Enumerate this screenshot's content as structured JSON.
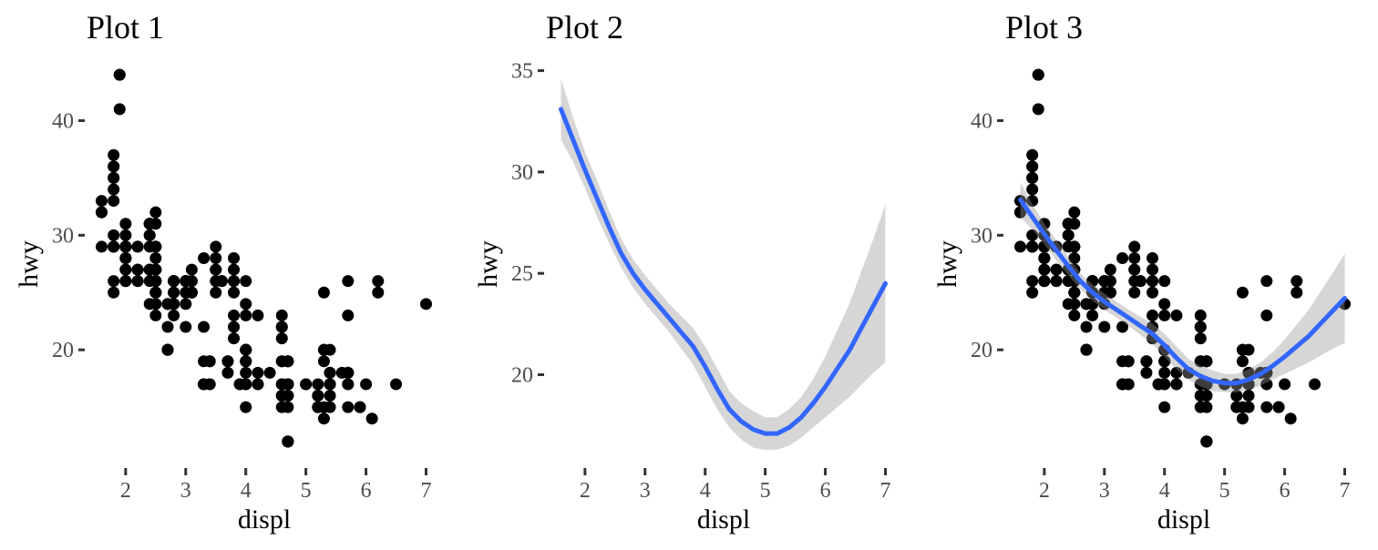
{
  "chart_data": [
    {
      "type": "scatter",
      "title": "Plot 1",
      "xlabel": "displ",
      "ylabel": "hwy",
      "xlim": [
        1.35,
        7.25
      ],
      "ylim": [
        10.4,
        45.6
      ],
      "xticks": [
        "2",
        "3",
        "4",
        "5",
        "6",
        "7"
      ],
      "yticks": [
        "20",
        "30",
        "40"
      ],
      "grid": false,
      "points": [
        [
          1.8,
          29
        ],
        [
          1.8,
          29
        ],
        [
          2.0,
          31
        ],
        [
          2.0,
          30
        ],
        [
          2.8,
          26
        ],
        [
          2.8,
          26
        ],
        [
          3.1,
          27
        ],
        [
          1.8,
          26
        ],
        [
          1.8,
          25
        ],
        [
          2.0,
          28
        ],
        [
          2.0,
          27
        ],
        [
          2.8,
          25
        ],
        [
          2.8,
          25
        ],
        [
          3.1,
          25
        ],
        [
          3.1,
          25
        ],
        [
          2.8,
          24
        ],
        [
          3.1,
          25
        ],
        [
          4.2,
          23
        ],
        [
          5.3,
          20
        ],
        [
          5.3,
          15
        ],
        [
          5.3,
          20
        ],
        [
          5.7,
          17
        ],
        [
          6.0,
          17
        ],
        [
          5.7,
          26
        ],
        [
          5.7,
          23
        ],
        [
          6.2,
          26
        ],
        [
          6.2,
          25
        ],
        [
          7.0,
          24
        ],
        [
          5.3,
          19
        ],
        [
          5.3,
          14
        ],
        [
          5.7,
          15
        ],
        [
          6.5,
          17
        ],
        [
          2.4,
          27
        ],
        [
          2.4,
          30
        ],
        [
          3.1,
          26
        ],
        [
          3.5,
          29
        ],
        [
          3.6,
          26
        ],
        [
          2.4,
          24
        ],
        [
          3.0,
          24
        ],
        [
          3.3,
          22
        ],
        [
          3.3,
          19
        ],
        [
          3.3,
          17
        ],
        [
          3.3,
          17
        ],
        [
          3.8,
          22
        ],
        [
          3.8,
          21
        ],
        [
          3.8,
          23
        ],
        [
          4.0,
          23
        ],
        [
          3.7,
          19
        ],
        [
          3.7,
          18
        ],
        [
          3.9,
          17
        ],
        [
          3.9,
          17
        ],
        [
          4.7,
          19
        ],
        [
          4.7,
          19
        ],
        [
          4.7,
          12
        ],
        [
          5.2,
          17
        ],
        [
          5.2,
          15
        ],
        [
          3.9,
          17
        ],
        [
          4.7,
          17
        ],
        [
          4.7,
          12
        ],
        [
          4.7,
          17
        ],
        [
          5.2,
          16
        ],
        [
          5.7,
          18
        ],
        [
          5.9,
          15
        ],
        [
          4.7,
          16
        ],
        [
          4.7,
          12
        ],
        [
          4.7,
          17
        ],
        [
          4.7,
          17
        ],
        [
          4.7,
          16
        ],
        [
          4.7,
          12
        ],
        [
          5.2,
          15
        ],
        [
          5.2,
          16
        ],
        [
          5.7,
          17
        ],
        [
          5.9,
          15
        ],
        [
          4.6,
          17
        ],
        [
          5.4,
          17
        ],
        [
          5.4,
          18
        ],
        [
          4.0,
          17
        ],
        [
          4.0,
          19
        ],
        [
          4.0,
          17
        ],
        [
          4.0,
          19
        ],
        [
          4.6,
          19
        ],
        [
          5.0,
          17
        ],
        [
          4.2,
          17
        ],
        [
          4.2,
          17
        ],
        [
          4.6,
          16
        ],
        [
          4.6,
          16
        ],
        [
          4.6,
          17
        ],
        [
          5.4,
          15
        ],
        [
          5.4,
          17
        ],
        [
          3.8,
          26
        ],
        [
          3.8,
          25
        ],
        [
          4.0,
          26
        ],
        [
          4.0,
          24
        ],
        [
          4.6,
          21
        ],
        [
          4.6,
          22
        ],
        [
          4.6,
          23
        ],
        [
          4.6,
          22
        ],
        [
          5.4,
          20
        ],
        [
          1.6,
          33
        ],
        [
          1.6,
          32
        ],
        [
          1.6,
          32
        ],
        [
          1.6,
          29
        ],
        [
          1.6,
          32
        ],
        [
          1.8,
          34
        ],
        [
          1.8,
          36
        ],
        [
          1.8,
          36
        ],
        [
          2.0,
          29
        ],
        [
          2.4,
          26
        ],
        [
          2.4,
          27
        ],
        [
          2.4,
          30
        ],
        [
          2.4,
          31
        ],
        [
          2.5,
          26
        ],
        [
          2.5,
          26
        ],
        [
          3.3,
          28
        ],
        [
          2.0,
          26
        ],
        [
          2.0,
          29
        ],
        [
          2.0,
          28
        ],
        [
          2.0,
          27
        ],
        [
          2.7,
          24
        ],
        [
          2.7,
          24
        ],
        [
          2.7,
          24
        ],
        [
          3.0,
          22
        ],
        [
          3.7,
          19
        ],
        [
          4.0,
          20
        ],
        [
          4.7,
          17
        ],
        [
          4.7,
          12
        ],
        [
          4.7,
          19
        ],
        [
          5.7,
          18
        ],
        [
          6.1,
          14
        ],
        [
          4.0,
          15
        ],
        [
          4.2,
          18
        ],
        [
          4.4,
          18
        ],
        [
          4.6,
          15
        ],
        [
          5.4,
          17
        ],
        [
          5.4,
          16
        ],
        [
          5.4,
          18
        ],
        [
          4.0,
          17
        ],
        [
          4.0,
          19
        ],
        [
          4.6,
          19
        ],
        [
          5.0,
          17
        ],
        [
          2.4,
          29
        ],
        [
          2.4,
          27
        ],
        [
          2.5,
          31
        ],
        [
          2.5,
          32
        ],
        [
          3.5,
          27
        ],
        [
          3.5,
          26
        ],
        [
          3.0,
          26
        ],
        [
          3.0,
          25
        ],
        [
          3.5,
          25
        ],
        [
          3.3,
          17
        ],
        [
          3.3,
          17
        ],
        [
          4.0,
          20
        ],
        [
          5.6,
          18
        ],
        [
          3.1,
          26
        ],
        [
          3.8,
          26
        ],
        [
          3.8,
          27
        ],
        [
          3.8,
          28
        ],
        [
          5.3,
          25
        ],
        [
          2.5,
          25
        ],
        [
          2.5,
          24
        ],
        [
          2.5,
          27
        ],
        [
          2.5,
          25
        ],
        [
          2.5,
          26
        ],
        [
          2.5,
          23
        ],
        [
          2.2,
          26
        ],
        [
          2.2,
          26
        ],
        [
          2.5,
          26
        ],
        [
          2.5,
          26
        ],
        [
          2.5,
          25
        ],
        [
          2.5,
          27
        ],
        [
          2.5,
          25
        ],
        [
          2.5,
          27
        ],
        [
          2.7,
          20
        ],
        [
          2.7,
          20
        ],
        [
          3.4,
          19
        ],
        [
          3.4,
          17
        ],
        [
          4.0,
          20
        ],
        [
          4.7,
          17
        ],
        [
          2.2,
          29
        ],
        [
          2.2,
          27
        ],
        [
          2.4,
          31
        ],
        [
          2.4,
          31
        ],
        [
          3.0,
          26
        ],
        [
          3.0,
          26
        ],
        [
          3.5,
          28
        ],
        [
          2.2,
          27
        ],
        [
          2.2,
          29
        ],
        [
          2.4,
          31
        ],
        [
          2.4,
          31
        ],
        [
          3.0,
          26
        ],
        [
          3.0,
          26
        ],
        [
          3.5,
          27
        ],
        [
          1.8,
          30
        ],
        [
          1.8,
          33
        ],
        [
          1.8,
          35
        ],
        [
          1.8,
          37
        ],
        [
          1.8,
          35
        ],
        [
          4.7,
          15
        ],
        [
          5.7,
          18
        ],
        [
          2.7,
          20
        ],
        [
          2.7,
          20
        ],
        [
          2.7,
          22
        ],
        [
          3.4,
          17
        ],
        [
          3.4,
          19
        ],
        [
          4.0,
          18
        ],
        [
          4.0,
          20
        ],
        [
          2.0,
          29
        ],
        [
          2.0,
          26
        ],
        [
          2.0,
          29
        ],
        [
          2.0,
          29
        ],
        [
          2.8,
          24
        ],
        [
          1.9,
          44
        ],
        [
          2.0,
          29
        ],
        [
          2.0,
          26
        ],
        [
          2.0,
          29
        ],
        [
          2.0,
          29
        ],
        [
          2.5,
          29
        ],
        [
          2.5,
          29
        ],
        [
          2.8,
          23
        ],
        [
          2.8,
          24
        ],
        [
          1.9,
          44
        ],
        [
          1.9,
          41
        ],
        [
          2.0,
          29
        ],
        [
          2.0,
          26
        ],
        [
          2.5,
          28
        ],
        [
          2.5,
          29
        ],
        [
          1.8,
          29
        ],
        [
          1.8,
          29
        ],
        [
          2.0,
          28
        ],
        [
          2.0,
          29
        ],
        [
          2.8,
          26
        ],
        [
          2.8,
          26
        ],
        [
          3.6,
          26
        ]
      ]
    },
    {
      "type": "line",
      "title": "Plot 2",
      "xlabel": "displ",
      "ylabel": "hwy",
      "xlim": [
        1.35,
        7.25
      ],
      "ylim": [
        15.8,
        35.7
      ],
      "xticks": [
        "2",
        "3",
        "4",
        "5",
        "6",
        "7"
      ],
      "yticks": [
        "20",
        "25",
        "30",
        "35"
      ],
      "grid": false,
      "series": [
        {
          "x": [
            1.6,
            1.8,
            2.0,
            2.2,
            2.4,
            2.6,
            2.8,
            3.0,
            3.2,
            3.4,
            3.6,
            3.8,
            4.0,
            4.2,
            4.4,
            4.6,
            4.8,
            5.0,
            5.2,
            5.4,
            5.6,
            5.8,
            6.0,
            6.2,
            6.4,
            6.6,
            6.8,
            7.0
          ],
          "y": [
            33.1,
            31.6,
            30.1,
            28.7,
            27.3,
            26.0,
            25.0,
            24.2,
            23.5,
            22.8,
            22.1,
            21.4,
            20.4,
            19.3,
            18.3,
            17.7,
            17.3,
            17.1,
            17.1,
            17.4,
            17.9,
            18.6,
            19.4,
            20.3,
            21.2,
            22.3,
            23.4,
            24.5
          ],
          "lower": [
            31.6,
            30.5,
            29.2,
            27.8,
            26.5,
            25.3,
            24.3,
            23.5,
            22.8,
            22.1,
            21.3,
            20.5,
            19.4,
            18.3,
            17.4,
            16.8,
            16.4,
            16.3,
            16.3,
            16.5,
            16.9,
            17.4,
            17.9,
            18.4,
            18.9,
            19.5,
            20.1,
            20.6
          ],
          "upper": [
            34.6,
            32.7,
            31.0,
            29.6,
            28.1,
            26.7,
            25.7,
            24.9,
            24.2,
            23.5,
            22.9,
            22.3,
            21.4,
            20.3,
            19.2,
            18.6,
            18.2,
            17.9,
            17.9,
            18.3,
            18.9,
            19.8,
            20.9,
            22.2,
            23.5,
            25.1,
            26.7,
            28.4
          ]
        }
      ]
    },
    {
      "type": "scatter",
      "title": "Plot 3",
      "xlabel": "displ",
      "ylabel": "hwy",
      "xlim": [
        1.35,
        7.25
      ],
      "ylim": [
        10.4,
        45.6
      ],
      "xticks": [
        "2",
        "3",
        "4",
        "5",
        "6",
        "7"
      ],
      "yticks": [
        "20",
        "30",
        "40"
      ],
      "grid": false,
      "points_same_as_plot": 1,
      "smooth_same_as_plot": 2
    }
  ]
}
